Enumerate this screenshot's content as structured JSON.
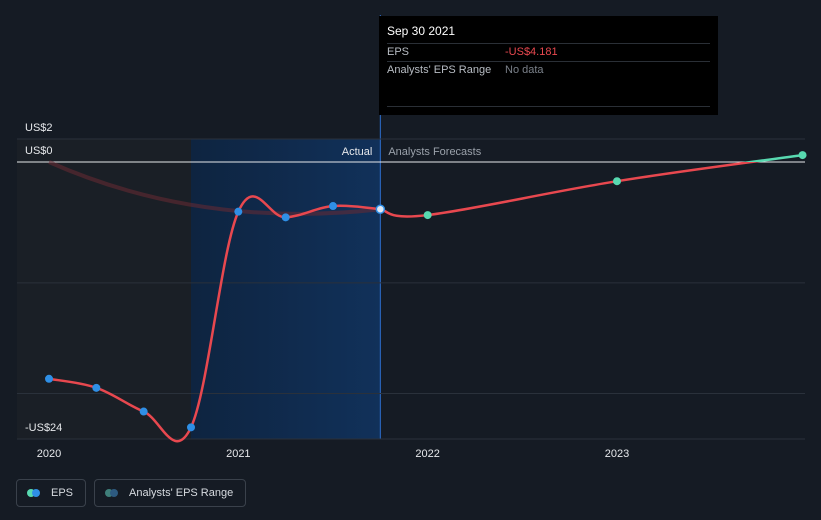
{
  "chart_data": {
    "type": "line",
    "title": "",
    "xlabel": "",
    "ylabel": "",
    "y_axis_labels": [
      "US$2",
      "US$0",
      "-US$24"
    ],
    "x_ticks": [
      "2020",
      "2021",
      "2022",
      "2023"
    ],
    "region_labels": {
      "actual": "Actual",
      "forecast": "Analysts Forecasts"
    },
    "ylim": [
      -24,
      2
    ],
    "xlim": [
      2019.97,
      2023.98
    ],
    "grid": true,
    "series": [
      {
        "name": "EPS",
        "kind": "actual-history",
        "points": [
          {
            "x": 2020.0,
            "y": -19.2
          },
          {
            "x": 2020.25,
            "y": -20.0
          },
          {
            "x": 2020.5,
            "y": -22.1
          },
          {
            "x": 2020.75,
            "y": -23.5
          },
          {
            "x": 2021.0,
            "y": -4.4
          },
          {
            "x": 2021.25,
            "y": -4.9
          },
          {
            "x": 2021.5,
            "y": -3.9
          },
          {
            "x": 2021.75,
            "y": -4.181
          }
        ],
        "color": "#e8484f"
      },
      {
        "name": "EPS",
        "kind": "forecast",
        "points": [
          {
            "x": 2021.75,
            "y": -4.181
          },
          {
            "x": 2022.0,
            "y": -4.7
          },
          {
            "x": 2023.0,
            "y": -1.7
          },
          {
            "x": 2023.98,
            "y": 0.6
          }
        ],
        "color": "#e8484f"
      }
    ],
    "analysts_range_trail": [
      {
        "x": 2020.0,
        "y": 0.0
      },
      {
        "x": 2021.75,
        "y": -4.181
      }
    ],
    "colors": {
      "actual_line": "#e8484f",
      "actual_dot": "#2f8fe6",
      "forecast_dot": "#58d9b0",
      "positive_line": "#58d9b0",
      "highlight_band": "#0f2a4a",
      "past_band": "#1a1f26"
    },
    "legend_position": "bottom-left"
  },
  "tooltip": {
    "date": "Sep 30 2021",
    "eps_label": "EPS",
    "eps_value": "-US$4.181",
    "range_label": "Analysts' EPS Range",
    "range_value": "No data"
  },
  "legend": {
    "eps_label": "EPS",
    "range_label": "Analysts' EPS Range"
  }
}
